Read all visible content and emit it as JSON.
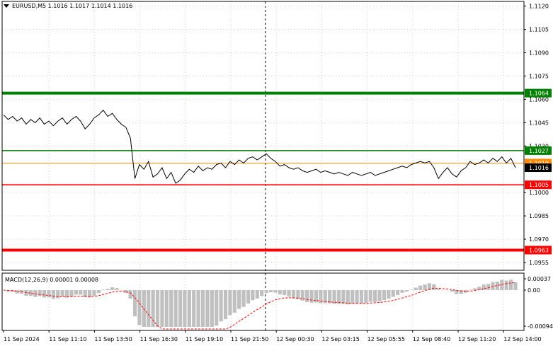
{
  "header": {
    "symbol": "EURUSD,M5",
    "ohlc": "1.1016 1.1017 1.1014 1.1016"
  },
  "macd": {
    "label": "MACD(12,26,9) 0.00001 0.00008",
    "axis": [
      "0.00037",
      "0.00",
      "-0.00094"
    ]
  },
  "price_axis": [
    "1.1120",
    "1.1105",
    "1.1090",
    "1.1075",
    "1.1060",
    "1.1045",
    "1.1030",
    "1.1000",
    "1.0985",
    "1.0970",
    "1.0955"
  ],
  "time_axis": [
    "11 Sep 2024",
    "11 Sep 11:10",
    "11 Sep 13:50",
    "11 Sep 16:30",
    "11 Sep 19:10",
    "11 Sep 21:50",
    "12 Sep 00:30",
    "12 Sep 03:15",
    "12 Sep 05:55",
    "12 Sep 08:40",
    "12 Sep 11:20",
    "12 Sep 14:00"
  ],
  "levels": [
    {
      "price": 1.1064,
      "label": "1.1064",
      "color": "#008000",
      "kind": "thick"
    },
    {
      "price": 1.1027,
      "label": "1.1027",
      "color": "#008000",
      "kind": "thin"
    },
    {
      "price": 1.1019,
      "label": "1.1019",
      "color": "#ff8c00",
      "kind": "bid"
    },
    {
      "price": 1.1005,
      "label": "1.1005",
      "color": "#ff0000",
      "kind": "thin"
    },
    {
      "price": 1.0963,
      "label": "1.0963",
      "color": "#ff0000",
      "kind": "thick"
    }
  ],
  "current_price": {
    "price": 1.1016,
    "label": "1.1016"
  },
  "colors": {
    "grid": "#c8c8c8",
    "price_line": "#000000",
    "histogram": "#c0c0c0",
    "signal": "#ff0000"
  },
  "chart_data": {
    "type": "line",
    "series": [
      {
        "values": [
          1.105,
          1.1047,
          1.1049,
          1.1046,
          1.1048,
          1.1044,
          1.1047,
          1.1045,
          1.1048,
          1.1044,
          1.1046,
          1.1043,
          1.1046,
          1.1048,
          1.1044,
          1.1047,
          1.1049,
          1.1046,
          1.1041,
          1.1044,
          1.1048,
          1.105,
          1.1053,
          1.1049,
          1.1051,
          1.1047,
          1.1044,
          1.1042,
          1.1035,
          1.1009,
          1.1018,
          1.1015,
          1.102,
          1.101,
          1.1012,
          1.1016,
          1.1009,
          1.1013,
          1.1006,
          1.1008,
          1.1012,
          1.1015,
          1.1013,
          1.1017,
          1.1014,
          1.1016,
          1.1015,
          1.1018,
          1.1019,
          1.1016,
          1.102,
          1.1018,
          1.1021,
          1.1019,
          1.1022,
          1.1023,
          1.1021,
          1.1023,
          1.1025,
          1.1022,
          1.102,
          1.1017,
          1.1018,
          1.1016,
          1.1015,
          1.1016,
          1.1014,
          1.1013,
          1.1014,
          1.1015,
          1.1013,
          1.1014,
          1.1013,
          1.1012,
          1.1013,
          1.1012,
          1.1011,
          1.1013,
          1.1012,
          1.1011,
          1.1012,
          1.1013,
          1.1011,
          1.1012,
          1.1013,
          1.1014,
          1.1015,
          1.1016,
          1.1017,
          1.1016,
          1.1018,
          1.1019,
          1.102,
          1.1019,
          1.102,
          1.1016,
          1.1009,
          1.1013,
          1.1016,
          1.1012,
          1.101,
          1.1014,
          1.1016,
          1.102,
          1.1018,
          1.1019,
          1.1021,
          1.1019,
          1.1022,
          1.102,
          1.1023,
          1.1019,
          1.1022,
          1.1016
        ]
      }
    ],
    "xlabel": "",
    "ylabel": "",
    "ylim": [
      1.095,
      1.1123
    ],
    "grid": true
  }
}
